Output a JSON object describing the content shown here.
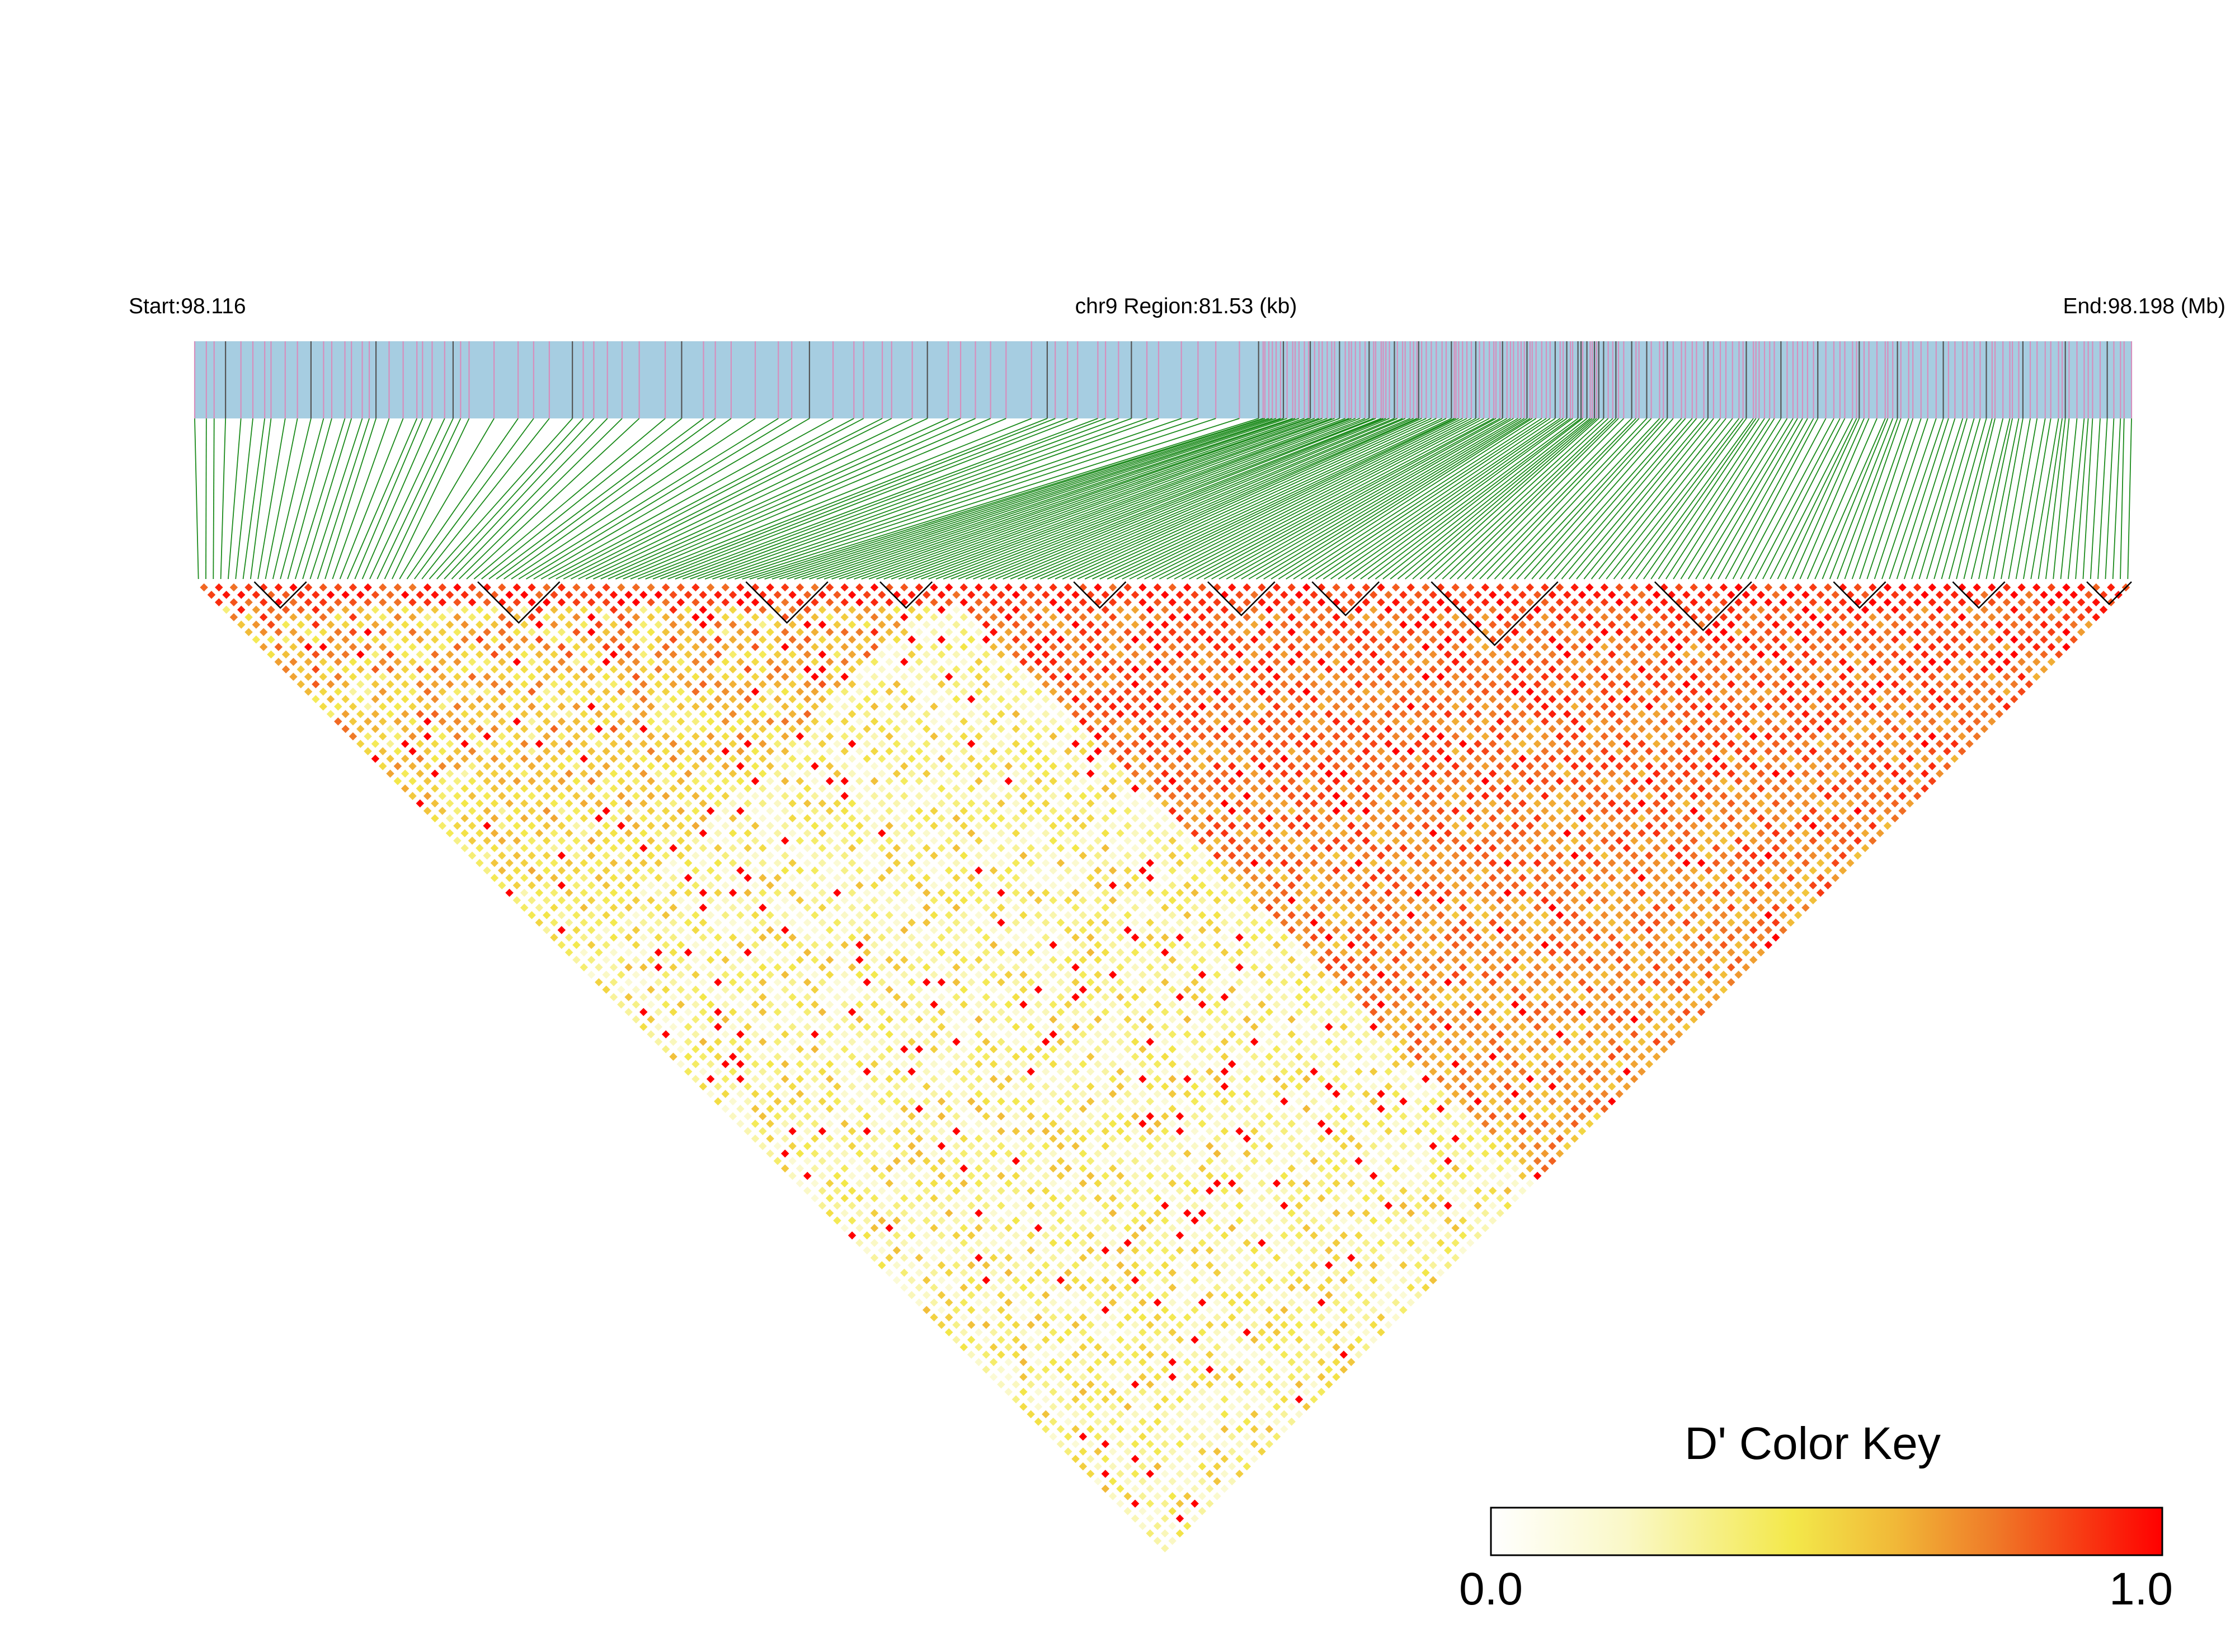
{
  "chart_data": {
    "type": "heatmap",
    "subtype": "LD triangle heatmap (pairwise D')",
    "header": {
      "start_label": "Start:98.116",
      "region_label": "chr9 Region:81.53 (kb)",
      "end_label": "End:98.198 (Mb)"
    },
    "region": {
      "chromosome": "chr9",
      "start_mb": 98.116,
      "end_mb": 98.198,
      "length_kb": 81.53
    },
    "color_key": {
      "title": "D' Color Key",
      "min_label": "0.0",
      "max_label": "1.0",
      "range": [
        0.0,
        1.0
      ],
      "colors": [
        "#ffffff",
        "#f5ef6b",
        "#f3e84a",
        "#ee9a32",
        "#f0531e",
        "#ff0000"
      ]
    },
    "colors": {
      "gene_track": "#a6cde1",
      "snp_mark_minor": "#d68fbd",
      "snp_mark_dense": "#555555",
      "connector_lines": "#1a8a1a",
      "block_outline": "#000000"
    },
    "snp_count": 260,
    "ld_blocks_snp_index_ranges": [
      [
        8,
        14
      ],
      [
        38,
        48
      ],
      [
        74,
        84
      ],
      [
        92,
        98
      ],
      [
        118,
        124
      ],
      [
        136,
        144
      ],
      [
        150,
        158
      ],
      [
        166,
        182
      ],
      [
        196,
        208
      ],
      [
        220,
        226
      ],
      [
        236,
        242
      ],
      [
        254,
        259
      ]
    ],
    "ld_pattern_note": "high D' (red) within the middle-to-right SNP cluster; low D' (pale yellow) between the left SNP group and the rest"
  }
}
